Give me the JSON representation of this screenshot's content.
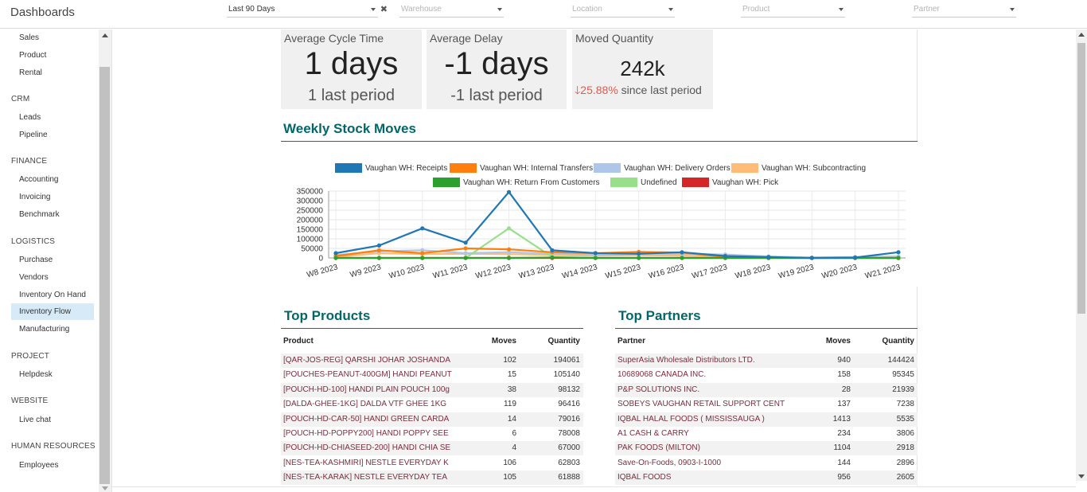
{
  "app": {
    "title": "Dashboards"
  },
  "filters": [
    {
      "value": "Last 90 Days",
      "placeholder": false,
      "clear": "✖"
    },
    {
      "value": "Warehouse",
      "placeholder": true
    },
    {
      "value": "Location",
      "placeholder": true
    },
    {
      "value": "Product",
      "placeholder": true
    },
    {
      "value": "Partner",
      "placeholder": true
    }
  ],
  "sidebar": {
    "items_top": [
      "Sales",
      "Product",
      "Rental"
    ],
    "crm": {
      "label": "CRM",
      "items": [
        "Leads",
        "Pipeline"
      ]
    },
    "finance": {
      "label": "FINANCE",
      "items": [
        "Accounting",
        "Invoicing",
        "Benchmark"
      ]
    },
    "logistics": {
      "label": "LOGISTICS",
      "items": [
        "Purchase",
        "Vendors",
        "Inventory On Hand",
        "Inventory Flow",
        "Manufacturing"
      ]
    },
    "project": {
      "label": "PROJECT",
      "items": [
        "Helpdesk"
      ]
    },
    "website": {
      "label": "WEBSITE",
      "items": [
        "Live chat"
      ]
    },
    "hr": {
      "label": "HUMAN RESOURCES",
      "items": [
        "Employees"
      ]
    },
    "active": "Inventory Flow"
  },
  "kpis": {
    "cycle": {
      "title": "Average Cycle Time",
      "value": "1 days",
      "sub": "1 last period"
    },
    "delay": {
      "title": "Average Delay",
      "value": "-1 days",
      "sub": "-1 last period"
    },
    "moved": {
      "title": "Moved Quantity",
      "value": "242k",
      "trend_arrow": "🡓",
      "trend_pct": "25.88%",
      "trend_text": "since last period"
    }
  },
  "sections": {
    "weekly": "Weekly Stock Moves",
    "products": "Top Products",
    "partners": "Top Partners"
  },
  "chart_data": {
    "type": "line",
    "categories": [
      "W8 2023",
      "W9 2023",
      "W10 2023",
      "W11 2023",
      "W12 2023",
      "W13 2023",
      "W14 2023",
      "W15 2023",
      "W16 2023",
      "W17 2023",
      "W18 2023",
      "W19 2023",
      "W20 2023",
      "W21 2023"
    ],
    "ylim": [
      0,
      350000
    ],
    "yticks": [
      "350000",
      "300000",
      "250000",
      "200000",
      "150000",
      "100000",
      "50000",
      "0"
    ],
    "ytick_values": [
      350000,
      300000,
      250000,
      200000,
      150000,
      100000,
      50000,
      0
    ],
    "grid": true,
    "legend_position": "top",
    "series": [
      {
        "name": "Vaughan WH: Receipts",
        "color": "#1f77b4",
        "values": [
          25000,
          65000,
          155000,
          80000,
          345000,
          40000,
          25000,
          22000,
          30000,
          10000,
          5000,
          0,
          2000,
          30000
        ]
      },
      {
        "name": "Vaughan WH: Internal Transfers",
        "color": "#ff7f0e",
        "values": [
          10000,
          40000,
          25000,
          50000,
          45000,
          30000,
          25000,
          32000,
          28000,
          5000,
          3000,
          0,
          0,
          0
        ]
      },
      {
        "name": "Vaughan WH: Delivery Orders",
        "color": "#aec7e8",
        "values": [
          15000,
          35000,
          40000,
          25000,
          30000,
          22000,
          18000,
          20000,
          22000,
          18000,
          8000,
          2000,
          5000,
          8000
        ]
      },
      {
        "name": "Vaughan WH: Subcontracting",
        "color": "#ffbb78",
        "values": [
          5000,
          25000,
          20000,
          22000,
          20000,
          15000,
          12000,
          14000,
          12000,
          8000,
          4000,
          0,
          2000,
          4000
        ]
      },
      {
        "name": "Vaughan WH: Return From Customers",
        "color": "#2ca02c",
        "values": [
          0,
          0,
          0,
          0,
          0,
          2000,
          0,
          0,
          0,
          0,
          0,
          0,
          0,
          0
        ]
      },
      {
        "name": "Undefined",
        "color": "#98df8a",
        "values": [
          0,
          0,
          0,
          0,
          155000,
          5000,
          0,
          0,
          0,
          0,
          0,
          0,
          0,
          0
        ]
      },
      {
        "name": "Vaughan WH: Pick",
        "color": "#d62728",
        "values": [
          0,
          0,
          0,
          0,
          0,
          0,
          0,
          0,
          0,
          0,
          0,
          0,
          0,
          0
        ]
      }
    ]
  },
  "products_table": {
    "headers": [
      "Product",
      "Moves",
      "Quantity"
    ],
    "rows": [
      [
        "[QAR-JOS-REG] QARSHI JOHAR JOSHANDA",
        "102",
        "194061"
      ],
      [
        "[POUCHES-PEANUT-400GM] HANDI PEANUT",
        "15",
        "105140"
      ],
      [
        "[POUCH-HD-100] HANDI PLAIN POUCH 100g",
        "38",
        "98132"
      ],
      [
        "[DALDA-GHEE-1KG] DALDA VTF GHEE 1KG",
        "119",
        "96416"
      ],
      [
        "[POUCH-HD-CAR-50] HANDI GREEN CARDA",
        "14",
        "79016"
      ],
      [
        "[POUCH-HD-POPPY200] HANDI POPPY SEE",
        "6",
        "78008"
      ],
      [
        "[POUCH-HD-CHIASEED-200] HANDI CHIA SE",
        "4",
        "67000"
      ],
      [
        "[NES-TEA-KASHMIRI] NESTLE EVERYDAY K",
        "106",
        "62803"
      ],
      [
        "[NES-TEA-KARAK] NESTLE EVERYDAY TEA",
        "105",
        "61888"
      ]
    ]
  },
  "partners_table": {
    "headers": [
      "Partner",
      "Moves",
      "Quantity"
    ],
    "rows": [
      [
        "SuperAsia Wholesale Distributors LTD.",
        "940",
        "144424"
      ],
      [
        "10689068 CANADA INC.",
        "158",
        "95345"
      ],
      [
        "P&P SOLUTIONS INC.",
        "28",
        "21939"
      ],
      [
        "SOBEYS VAUGHAN RETAIL SUPPORT CENT",
        "137",
        "7238"
      ],
      [
        "IQBAL HALAL FOODS ( MISSISSAUGA )",
        "1413",
        "5535"
      ],
      [
        "A1 CASH & CARRY",
        "234",
        "3806"
      ],
      [
        "PAK FOODS (MILTON)",
        "1104",
        "2918"
      ],
      [
        "Save-On-Foods, 0903-I-1000",
        "144",
        "2896"
      ],
      [
        "IQBAL FOODS",
        "956",
        "2605"
      ]
    ]
  }
}
